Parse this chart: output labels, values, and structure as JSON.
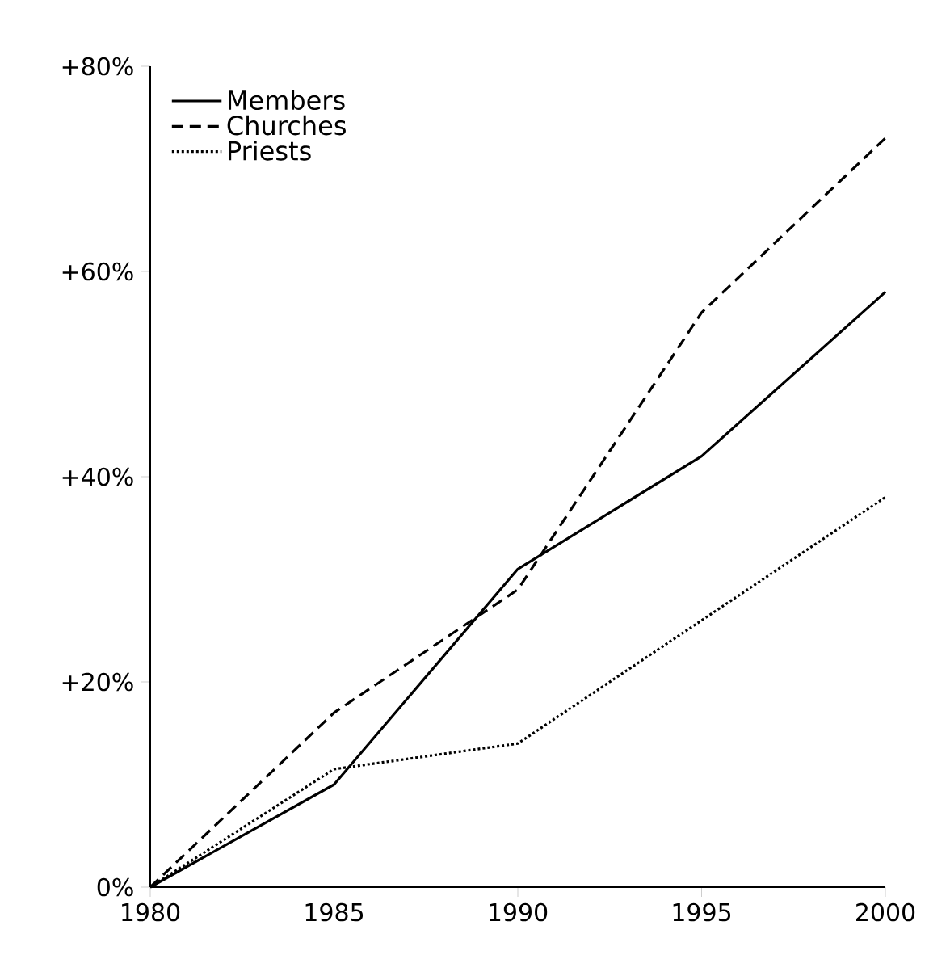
{
  "chart_data": {
    "type": "line",
    "x": [
      1980,
      1985,
      1990,
      1995,
      2000
    ],
    "series": [
      {
        "name": "Members",
        "color": "#000000",
        "line_style": "solid",
        "values": [
          0,
          10,
          31,
          42,
          58
        ]
      },
      {
        "name": "Churches",
        "color": "#000000",
        "line_style": "dashed",
        "values": [
          0,
          17,
          29,
          56,
          73
        ]
      },
      {
        "name": "Priests",
        "color": "#000000",
        "line_style": "dotted",
        "values": [
          0,
          11.5,
          14,
          26,
          38
        ]
      }
    ],
    "xlim": [
      1980,
      2000
    ],
    "ylim": [
      0,
      80
    ],
    "xticks": [
      1980,
      1985,
      1990,
      1995,
      2000
    ],
    "yticks": [
      {
        "value": 0,
        "label": "0%"
      },
      {
        "value": 20,
        "label": "+20%"
      },
      {
        "value": 40,
        "label": "+40%"
      },
      {
        "value": 60,
        "label": "+60%"
      },
      {
        "value": 80,
        "label": "+80%"
      }
    ],
    "grid": false,
    "legend": "top left",
    "marker": "none"
  }
}
